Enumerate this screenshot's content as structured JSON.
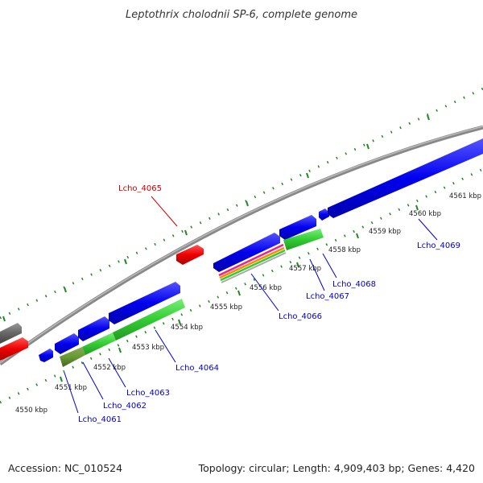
{
  "title": "Leptothrix cholodnii SP-6, complete genome",
  "footer": {
    "accession": "Accession: NC_010524",
    "summary": "Topology: circular; Length: 4,909,403 bp; Genes: 4,420"
  },
  "scale": {
    "tick_labels": [
      "4550 kbp",
      "4551 kbp",
      "4552 kbp",
      "4553 kbp",
      "4554 kbp",
      "4555 kbp",
      "4556 kbp",
      "4557 kbp",
      "4558 kbp",
      "4559 kbp",
      "4560 kbp",
      "4561 kbp"
    ]
  },
  "genes": [
    {
      "label": "Lcho_4061",
      "color": "#0000cc"
    },
    {
      "label": "Lcho_4062",
      "color": "#0000cc"
    },
    {
      "label": "Lcho_4063",
      "color": "#0000cc"
    },
    {
      "label": "Lcho_4064",
      "color": "#0000cc"
    },
    {
      "label": "Lcho_4065",
      "color": "#cc0000"
    },
    {
      "label": "Lcho_4066",
      "color": "#0000cc"
    },
    {
      "label": "Lcho_4067",
      "color": "#0000cc"
    },
    {
      "label": "Lcho_4068",
      "color": "#0000cc"
    },
    {
      "label": "Lcho_4069",
      "color": "#0000cc"
    }
  ],
  "colors": {
    "backbone": "#808080",
    "forward_cds": "#0000ee",
    "reverse_cds": "#ee0000",
    "feature_green": "#33cc33",
    "feature_olive": "#669933",
    "tick": "#228822",
    "other": "#666666"
  }
}
